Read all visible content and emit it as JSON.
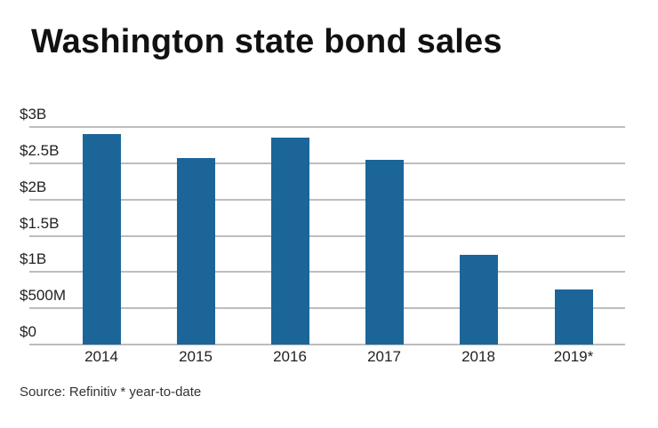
{
  "title": "Washington state bond sales",
  "source": "Source: Refinitiv * year-to-date",
  "colors": {
    "bar": "#1b6599",
    "grid": "#bdbdbd"
  },
  "chart_data": {
    "type": "bar",
    "title": "Washington state bond sales",
    "xlabel": "",
    "ylabel": "",
    "categories": [
      "2014",
      "2015",
      "2016",
      "2017",
      "2018",
      "2019*"
    ],
    "values": [
      2.9,
      2.57,
      2.85,
      2.55,
      1.24,
      0.76
    ],
    "units": "billions USD",
    "ylim": [
      0,
      3
    ],
    "yticks": [
      "$0",
      "$500M",
      "$1B",
      "$1.5B",
      "$2B",
      "$2.5B",
      "$3B"
    ],
    "grid": true,
    "legend": "none",
    "annotations": [
      "* year-to-date"
    ]
  }
}
